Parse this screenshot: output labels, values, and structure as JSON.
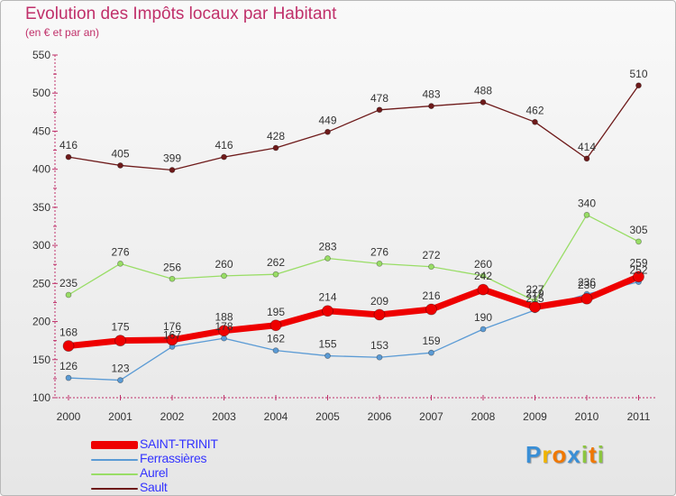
{
  "chart_data": {
    "type": "line",
    "title": "Evolution des Impôts locaux par Habitant",
    "subtitle": "(en € et par an)",
    "xlabel": "",
    "ylabel": "",
    "categories": [
      "2000",
      "2001",
      "2002",
      "2003",
      "2004",
      "2005",
      "2006",
      "2007",
      "2008",
      "2009",
      "2010",
      "2011"
    ],
    "ylim": [
      100,
      550
    ],
    "yticks": [
      100,
      150,
      200,
      250,
      300,
      350,
      400,
      450,
      500,
      550
    ],
    "grid": false,
    "legend_position": "bottom-left",
    "series": [
      {
        "name": "Sault",
        "color": "#6e1a1a",
        "width": 1.3,
        "labels": true,
        "values": [
          416,
          405,
          399,
          416,
          428,
          449,
          478,
          483,
          488,
          462,
          414,
          510
        ]
      },
      {
        "name": "Aurel",
        "color": "#99dd66",
        "width": 1.3,
        "labels": true,
        "values": [
          235,
          276,
          256,
          260,
          262,
          283,
          276,
          272,
          260,
          227,
          340,
          305
        ]
      },
      {
        "name": "Ferrassières",
        "color": "#5b9bd5",
        "width": 1.3,
        "labels": true,
        "values": [
          126,
          123,
          167,
          178,
          162,
          155,
          153,
          159,
          190,
          215,
          236,
          252
        ]
      },
      {
        "name": "SAINT-TRINIT",
        "color": "#ee0000",
        "width": 7,
        "labels": true,
        "values": [
          168,
          175,
          176,
          188,
          195,
          214,
          209,
          216,
          242,
          219,
          230,
          259
        ]
      }
    ]
  },
  "legend": [
    {
      "name": "SAINT-TRINIT",
      "color": "#ee0000"
    },
    {
      "name": "Ferrassières",
      "color": "#5b9bd5"
    },
    {
      "name": "Aurel",
      "color": "#99dd66"
    },
    {
      "name": "Sault",
      "color": "#6e1a1a"
    }
  ],
  "logo": {
    "text": "Proxiti",
    "letters": [
      {
        "char": "P",
        "color": "#3a8fd6"
      },
      {
        "char": "r",
        "color": "#f0b400"
      },
      {
        "char": "o",
        "color": "#f07800"
      },
      {
        "char": "x",
        "color": "#3a8fd6"
      },
      {
        "char": "i",
        "color": "#8cc63f"
      },
      {
        "char": "t",
        "color": "#f07800"
      },
      {
        "char": "i",
        "color": "#8cc63f"
      }
    ]
  }
}
